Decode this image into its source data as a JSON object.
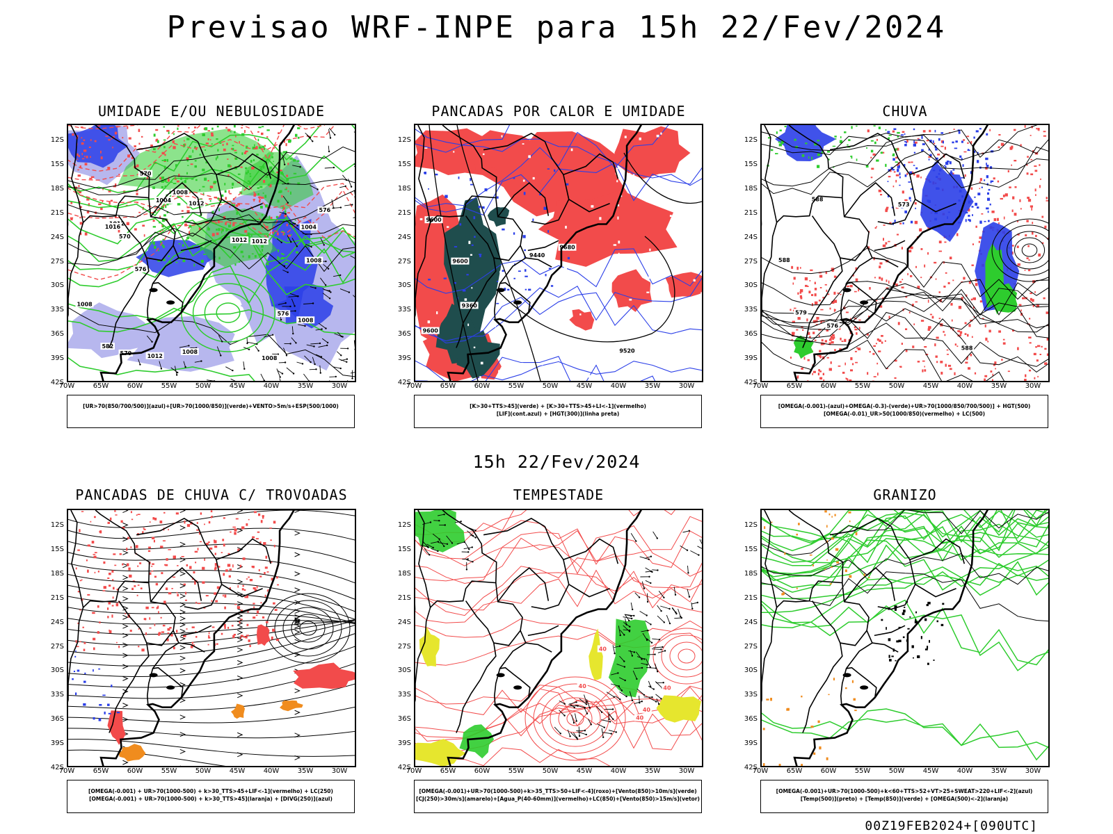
{
  "title": "Previsao WRF-INPE  para 15h 22/Fev/2024",
  "subtitle": "15h 22/Fev/2024",
  "timestamp": "00Z19FEB2024+[090UTC]",
  "axes": {
    "lat_ticks": [
      "12S",
      "15S",
      "18S",
      "21S",
      "24S",
      "27S",
      "30S",
      "33S",
      "36S",
      "39S",
      "42S"
    ],
    "lon_ticks": [
      "70W",
      "65W",
      "60W",
      "55W",
      "50W",
      "45W",
      "40W",
      "35W",
      "30W"
    ]
  },
  "colors": {
    "red": "#f24b4b",
    "green": "#2ecc2e",
    "blue": "#2b3fe8",
    "light_blue": "#b7b7ee",
    "dark_teal": "#1f4d4d",
    "yellow": "#e6e62e",
    "orange": "#f08c1e"
  },
  "chart_data": [
    {
      "type": "map",
      "title": "UMIDADE E/OU NEBULOSIDADE",
      "legend": [
        "[UR>70(850/700/500)](azul)+[UR>70(1000/850)](verde)+VENTO>5m/s+ESP(500/1000)"
      ],
      "contour_labels": [
        "1008",
        "1008",
        "1008",
        "1012",
        "1012",
        "1004",
        "1004",
        "1008",
        "1012",
        "1012",
        "1008",
        "1016",
        "1008",
        "1012",
        "570",
        "576",
        "576",
        "582",
        "570",
        "576",
        "570"
      ]
    },
    {
      "type": "map",
      "title": "PANCADAS POR CALOR E UMIDADE",
      "legend": [
        "[K>30+TTS>45](verde) + [K>30+TTS>45+LI<-1](vermelho)",
        "[LIF](cont.azul) + [HGT(300)](linha preta)"
      ],
      "contour_labels": [
        "9600",
        "9600",
        "9520",
        "9440",
        "9360",
        "9600",
        "9680"
      ]
    },
    {
      "type": "map",
      "title": "CHUVA",
      "legend": [
        "[OMEGA(-0.001)-(azul)+OMEGA(-0.3)-(verde)+UR>70(1000/850/700/500)] + HGT(500)",
        "[OMEGA(-0.01)_UR>50(1000/850)(vermelho) + LC(500)"
      ],
      "contour_labels": [
        "588",
        "588",
        "579",
        "576",
        "573",
        "588"
      ]
    },
    {
      "type": "map",
      "title": "PANCADAS DE CHUVA C/ TROVOADAS",
      "legend": [
        "[OMEGA(-0.001) + UR>70(1000-500) + k>30_TTS>45+LIF<-1](vermelho) + LC(250)",
        "[OMEGA(-0.001) + UR>70(1000-500) + k>30_TTS>45](laranja) + [DIVG(250)](azul)"
      ],
      "contour_labels": []
    },
    {
      "type": "map",
      "title": "TEMPESTADE",
      "legend": [
        "[OMEGA(-0.001)+UR>70(1000-500)+k>35_TTS>50+LIF<-4](roxo)+[Vento(850)>10m/s](verde)",
        "[CJ(250)>30m/s](amarelo)+[Agua_P(40-60mm)](vermelho)+LC(850)+[Vento(850)>15m/s](vetor)"
      ],
      "contour_labels": [
        "40",
        "40",
        "40",
        "40",
        "40"
      ]
    },
    {
      "type": "map",
      "title": "GRANIZO",
      "legend": [
        "[OMEGA(-0.001)+UR>70(1000-500)+k<60+TTS>52+VT>25+SWEAT>220+LIF<-2](azul)",
        "[Temp(500)](preto) + [Temp(850)](verde) + [OMEGA(500)<-2](laranja)"
      ],
      "contour_labels": []
    }
  ]
}
